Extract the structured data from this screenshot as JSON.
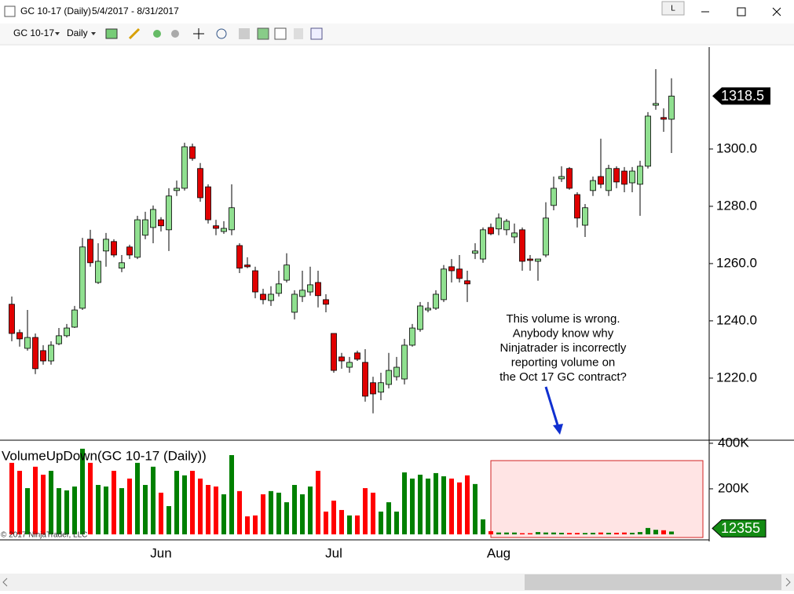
{
  "window": {
    "title": "GC 10-17 (Daily)",
    "range": "5/4/2017 - 8/31/2017",
    "button": "L"
  },
  "toolbar": {
    "instrument": "GC 10-17",
    "interval": "Daily"
  },
  "copyright": "© 2017 NinjaTrader, LLC",
  "chart_data": {
    "type": "candlestick",
    "categories": [
      null,
      null,
      null,
      null,
      null,
      null,
      null,
      null,
      null,
      null,
      null,
      null,
      null,
      null,
      null,
      null,
      null,
      null,
      null,
      "Jun",
      null,
      null,
      null,
      null,
      null,
      null,
      null,
      null,
      null,
      null,
      null,
      null,
      null,
      null,
      null,
      null,
      null,
      null,
      null,
      null,
      null,
      "Jul",
      null,
      null,
      null,
      null,
      null,
      null,
      null,
      null,
      null,
      null,
      null,
      null,
      null,
      null,
      null,
      null,
      null,
      null,
      null,
      null,
      "Aug",
      null,
      null,
      null,
      null,
      null,
      null,
      null,
      null,
      null,
      null,
      null,
      null,
      null,
      null,
      null,
      null,
      null,
      null,
      null,
      null,
      null,
      null
    ],
    "open": [
      1245.8,
      1235.9,
      1230.4,
      1234.2,
      1229.6,
      1226,
      1232,
      1234.8,
      1237.8,
      1244.4,
      1268.5,
      1253.4,
      1264.4,
      1267.7,
      1258.4,
      1265.8,
      1262.2,
      1269.9,
      1272.6,
      1275.3,
      1271.8,
      1285.5,
      1286.3,
      1300.8,
      1293.2,
      1286.8,
      1273.2,
      1271.2,
      1271.8,
      1266.3,
      1259.5,
      1257.5,
      1249.3,
      1247.1,
      1249.6,
      1254.2,
      1243,
      1248.5,
      1250.1,
      1253.4,
      1247.4,
      1235.6,
      1227.4,
      1223.8,
      1228.8,
      1225.5,
      1218.4,
      1215.1,
      1217.8,
      1220.5,
      1219.7,
      1231.5,
      1237,
      1243.8,
      1244.4,
      1247.4,
      1258.9,
      1258.1,
      1254,
      1263.6,
      1261.6,
      1272.6,
      1272.1,
      1271.8,
      1269.3,
      1271.8,
      1261.6,
      1260.8,
      1263,
      1280.3,
      1289.6,
      1293.2,
      1284.1,
      1273.4,
      1285.5,
      1290.4,
      1285.5,
      1293.2,
      1292.3,
      1288.2,
      1287.7,
      1294,
      1315.3,
      1311,
      1310.4
    ],
    "high": [
      1248.5,
      1237,
      1243.8,
      1235.6,
      1231.5,
      1232.9,
      1237.5,
      1238.9,
      1245.2,
      1269,
      1271.8,
      1267.1,
      1270.7,
      1268.5,
      1263,
      1266.6,
      1276.7,
      1278.1,
      1280.3,
      1276.2,
      1286.3,
      1289,
      1302.2,
      1301.9,
      1295.1,
      1287.7,
      1275.3,
      1274.8,
      1287.7,
      1267.1,
      1262.2,
      1258.9,
      1251.2,
      1252.1,
      1257.5,
      1263.6,
      1250.7,
      1257.5,
      1258.9,
      1257.5,
      1249.3,
      1235.6,
      1228.8,
      1227.4,
      1229.6,
      1230.1,
      1220.5,
      1221.9,
      1228.8,
      1227.4,
      1233.7,
      1238.9,
      1246.6,
      1246.6,
      1250.7,
      1259.5,
      1261.6,
      1263,
      1257.5,
      1267.1,
      1272.6,
      1274,
      1277.5,
      1275.6,
      1274,
      1272.6,
      1263,
      1261.6,
      1281.4,
      1290.4,
      1294,
      1293.7,
      1284.9,
      1280.8,
      1290.4,
      1303.6,
      1294.5,
      1294,
      1293.7,
      1293.7,
      1295.9,
      1312.9,
      1327.9,
      1314.2,
      1324.7
    ],
    "low": [
      1232.9,
      1231,
      1229.6,
      1221.4,
      1224.7,
      1224.7,
      1231.5,
      1234.2,
      1237.5,
      1243.8,
      1258.9,
      1252.9,
      1258.9,
      1262.2,
      1257,
      1261.6,
      1261.6,
      1268.5,
      1267.1,
      1271.2,
      1264.4,
      1283.6,
      1285.5,
      1295.9,
      1281.6,
      1274,
      1269.9,
      1270.4,
      1269.9,
      1256.7,
      1258.4,
      1247.9,
      1245.8,
      1245.2,
      1248.5,
      1253.4,
      1240.5,
      1246.6,
      1248.8,
      1244.7,
      1243,
      1221.9,
      1223.3,
      1221.9,
      1226,
      1211.8,
      1207.7,
      1212.3,
      1216.4,
      1219.2,
      1217.8,
      1231,
      1236.2,
      1243,
      1243.8,
      1246.6,
      1253.4,
      1253.4,
      1246.6,
      1261.6,
      1260.3,
      1269.9,
      1269.9,
      1269.9,
      1267.1,
      1257.5,
      1257.5,
      1254,
      1262.2,
      1278.6,
      1288.5,
      1285.8,
      1272.6,
      1269.3,
      1283.6,
      1286.3,
      1283.6,
      1286.3,
      1284.9,
      1284.9,
      1276.7,
      1293.2,
      1313.7,
      1306,
      1298.6
    ],
    "close": [
      1235.6,
      1233.7,
      1234.2,
      1223.3,
      1226,
      1231.5,
      1234.8,
      1237.5,
      1243.8,
      1265.8,
      1260.3,
      1260.8,
      1268.5,
      1263,
      1260.3,
      1263,
      1275.3,
      1275.3,
      1278.9,
      1273.2,
      1283.6,
      1286.3,
      1300.8,
      1296.7,
      1283,
      1275.3,
      1272.3,
      1272.3,
      1279.5,
      1258.4,
      1258.9,
      1250.1,
      1247.4,
      1249.3,
      1252.9,
      1259.5,
      1249.3,
      1250.7,
      1252.6,
      1248.8,
      1245.8,
      1222.7,
      1226,
      1225.5,
      1226.6,
      1213.7,
      1214.5,
      1218.4,
      1222.7,
      1223.8,
      1231.5,
      1237.5,
      1245.2,
      1244.4,
      1249.3,
      1258.1,
      1257.5,
      1254.8,
      1252.9,
      1264.4,
      1271.8,
      1270.4,
      1275.9,
      1274.8,
      1270.7,
      1260.8,
      1261.1,
      1261.6,
      1275.9,
      1286.3,
      1290.4,
      1286.3,
      1275.9,
      1279.5,
      1289,
      1287.7,
      1293.2,
      1288.5,
      1287.7,
      1292.3,
      1294,
      1311.5,
      1315.9,
      1310.4,
      1318.5
    ],
    "up_color": "#90e090",
    "down_color": "#e00000",
    "ylim": [
      1198.6,
      1335.6
    ],
    "yticks": [
      {
        "value": 1220,
        "label": "1220.0"
      },
      {
        "value": 1240,
        "label": "1240.0"
      },
      {
        "value": 1260,
        "label": "1260.0"
      },
      {
        "value": 1280,
        "label": "1280.0"
      },
      {
        "value": 1300,
        "label": "1300.0"
      }
    ],
    "annotation": [
      "This volume is wrong.",
      "Anybody know why",
      "Ninjatrader is incorrectly",
      "reporting volume on",
      "the Oct 17 GC contract?"
    ],
    "volume": {
      "title": "VolumeUpDown(GC 10-17 (Daily))",
      "values": [
        314000,
        279000,
        203000,
        297000,
        262000,
        279000,
        203000,
        193000,
        210000,
        376000,
        314000,
        217000,
        210000,
        279000,
        203000,
        245000,
        314000,
        217000,
        297000,
        183000,
        124000,
        279000,
        259000,
        279000,
        245000,
        217000,
        210000,
        176000,
        348000,
        190000,
        79000,
        83000,
        176000,
        190000,
        183000,
        141000,
        217000,
        176000,
        210000,
        279000,
        100000,
        148000,
        107000,
        83000,
        83000,
        203000,
        183000,
        100000,
        141000,
        100000,
        272000,
        245000,
        262000,
        245000,
        269000,
        255000,
        245000,
        228000,
        259000,
        221000,
        66000,
        14000,
        8000,
        8000,
        8000,
        5000,
        5000,
        10000,
        8000,
        8000,
        7000,
        6000,
        6000,
        6000,
        7000,
        8000,
        7000,
        7000,
        8000,
        7000,
        10000,
        28000,
        20000,
        18000,
        12355
      ],
      "up_color": "#008000",
      "down_color": "#ff0000",
      "ylim": [
        0,
        410000
      ],
      "yticks": [
        {
          "value": 200000,
          "label": "200K"
        },
        {
          "value": 400000,
          "label": "400K"
        }
      ]
    }
  }
}
